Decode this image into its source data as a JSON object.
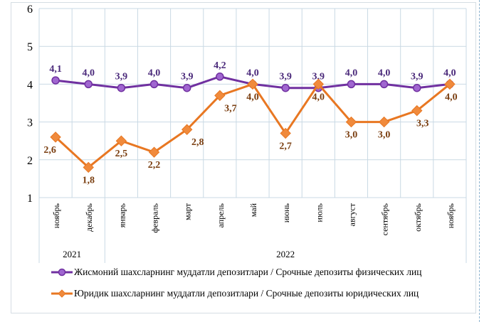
{
  "chart_data": {
    "type": "line",
    "categories": [
      "ноябрь",
      "декабрь",
      "январь",
      "февраль",
      "март",
      "апрель",
      "май",
      "июнь",
      "июль",
      "август",
      "сентябрь",
      "октябрь",
      "ноябрь"
    ],
    "year_groups": [
      {
        "label": "2021",
        "count": 2
      },
      {
        "label": "2022",
        "count": 11
      }
    ],
    "ylim": [
      1,
      6
    ],
    "yticks": [
      "1",
      "2",
      "3",
      "4",
      "5",
      "6"
    ],
    "grid": true,
    "legend_position": "bottom",
    "series": [
      {
        "name": "Жисмоний шахсларнинг  муддатли  депозитлари  / Срочные депозиты  физических  лиц",
        "color": "#7030a0",
        "marker": "circle",
        "marker_fill": "#a066d0",
        "values": [
          4.1,
          4.0,
          3.9,
          4.0,
          3.9,
          4.2,
          4.0,
          3.9,
          3.9,
          4.0,
          4.0,
          3.9,
          4.0
        ],
        "labels": [
          "4,1",
          "4,0",
          "3,9",
          "4,0",
          "3,9",
          "4,2",
          "4,0",
          "3,9",
          "3,9",
          "4,0",
          "4,0",
          "3,9",
          "4,0"
        ]
      },
      {
        "name": "Юридик шахсларнинг  муддатли  депозитлари  / Срочные депозиты  юридических  лиц",
        "color": "#e87722",
        "marker": "diamond",
        "marker_fill": "#f08a3c",
        "values": [
          2.6,
          1.8,
          2.5,
          2.2,
          2.8,
          3.7,
          4.0,
          2.7,
          4.0,
          3.0,
          3.0,
          3.3,
          4.0
        ],
        "labels": [
          "2,6",
          "1,8",
          "2,5",
          "2,2",
          "2,8",
          "3,7",
          "4,0",
          "2,7",
          "4,0",
          "3,0",
          "3,0",
          "3,3",
          "4,0"
        ]
      }
    ]
  }
}
